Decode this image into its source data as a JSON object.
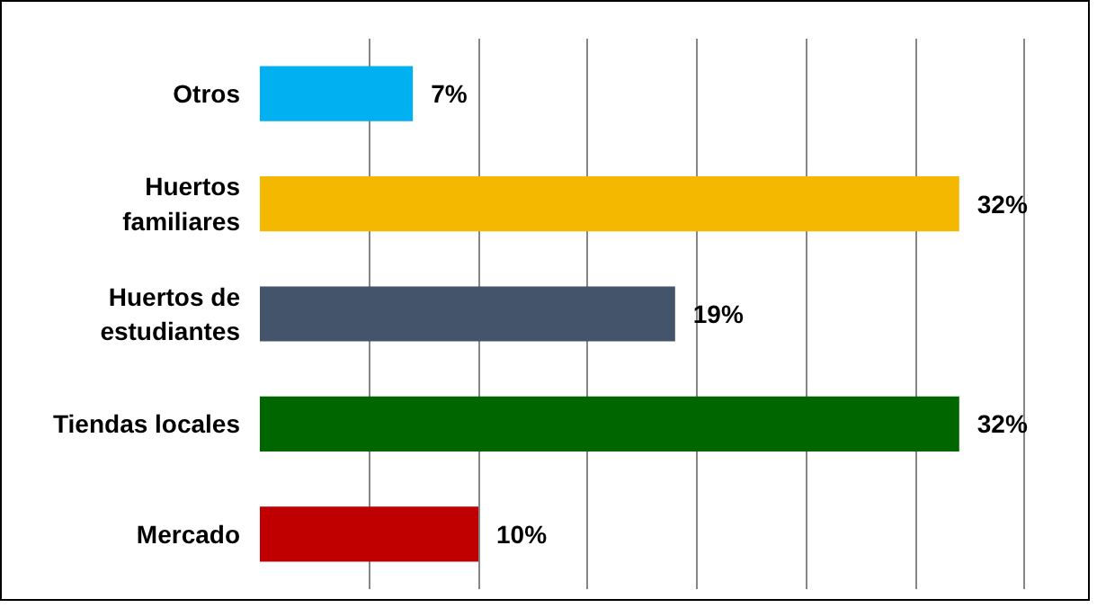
{
  "chart_data": {
    "type": "bar",
    "orientation": "horizontal",
    "categories": [
      "Otros",
      "Huertos\nfamiliares",
      "Huertos de\nestudiantes",
      "Tiendas locales",
      "Mercado"
    ],
    "values": [
      7,
      32,
      19,
      32,
      10
    ],
    "colors": [
      "#00b0f0",
      "#f5b800",
      "#44546a",
      "#006600",
      "#c00000"
    ],
    "value_labels": [
      "7%",
      "32%",
      "19%",
      "32%",
      "10%"
    ],
    "grid": "x",
    "tick_labels": "y"
  }
}
